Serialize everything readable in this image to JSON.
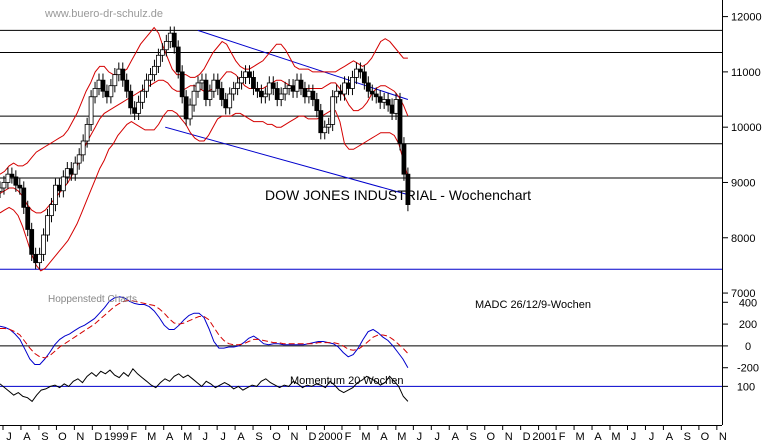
{
  "header": {
    "website": "www.buero-dr-schulz.de"
  },
  "chart_data": [
    {
      "type": "candlestick",
      "panel": "price",
      "title": "DOW JONES INDUSTRIAL - Wochenchart",
      "ylim": [
        7200,
        12300
      ],
      "yticks": [
        {
          "v": 12000,
          "label": "12000"
        },
        {
          "v": 11000,
          "label": "11000"
        },
        {
          "v": 10000,
          "label": "10000"
        },
        {
          "v": 9000,
          "label": "9000"
        },
        {
          "v": 8000,
          "label": "8000"
        },
        {
          "v": 7000,
          "label": "7000"
        }
      ],
      "horizontal_levels": [
        11750,
        11350,
        10200,
        9700,
        9080,
        7430
      ],
      "trend_channel": {
        "upper": [
          {
            "t": 48.5,
            "v": 11750
          },
          {
            "t": 100,
            "v": 10500
          }
        ],
        "lower": [
          {
            "t": 40.5,
            "v": 10000
          },
          {
            "t": 100,
            "v": 8780
          }
        ]
      },
      "series": [
        {
          "type": "bollinger-upper",
          "color": "#d40000",
          "values": [
            9150,
            9200,
            9300,
            9350,
            9300,
            9300,
            9350,
            9450,
            9550,
            9600,
            9650,
            9700,
            9750,
            9800,
            9850,
            9950,
            10100,
            10250,
            10450,
            10650,
            10800,
            11000,
            11100,
            11100,
            11000,
            10950,
            10950,
            11000,
            11050,
            11200,
            11350,
            11500,
            11600,
            11700,
            11800,
            11700,
            11450,
            11250,
            11050,
            10950,
            10950,
            10950,
            10900,
            10900,
            10950,
            11050,
            11200,
            11350,
            11450,
            11550,
            11500,
            11350,
            11200,
            11100,
            11050,
            11050,
            11100,
            11150,
            11200,
            11300,
            11400,
            11500,
            11500,
            11400,
            11250,
            11100,
            11050,
            11050,
            11050,
            11000,
            11000,
            11000,
            11000,
            11000,
            11000,
            11050,
            11100,
            11150,
            11200,
            11150,
            11100,
            11150,
            11250,
            11400,
            11550,
            11600,
            11550,
            11450,
            11350,
            11250,
            11250
          ]
        },
        {
          "type": "bollinger-middle",
          "color": "#d40000",
          "values": [
            8800,
            8850,
            8900,
            8900,
            8850,
            8750,
            8600,
            8500,
            8450,
            8450,
            8500,
            8600,
            8700,
            8800,
            8900,
            9000,
            9150,
            9300,
            9500,
            9700,
            9850,
            10000,
            10150,
            10250,
            10300,
            10350,
            10400,
            10450,
            10500,
            10550,
            10600,
            10650,
            10700,
            10750,
            10800,
            10850,
            10850,
            10800,
            10700,
            10650,
            10650,
            10700,
            10750,
            10750,
            10700,
            10650,
            10650,
            10700,
            10800,
            10900,
            11000,
            11000,
            10950,
            10850,
            10750,
            10700,
            10700,
            10700,
            10700,
            10750,
            10800,
            10850,
            10850,
            10800,
            10750,
            10700,
            10700,
            10700,
            10700,
            10700,
            10700,
            10700,
            10750,
            10800,
            10800,
            10700,
            10550,
            10400,
            10300,
            10300,
            10350,
            10450,
            10600,
            10700,
            10750,
            10750,
            10700,
            10650,
            10550,
            10400,
            10200
          ]
        },
        {
          "type": "bollinger-lower",
          "color": "#d40000",
          "values": [
            8450,
            8500,
            8550,
            8500,
            8400,
            8200,
            7950,
            7700,
            7500,
            7400,
            7450,
            7550,
            7650,
            7750,
            7850,
            7950,
            8100,
            8250,
            8450,
            8650,
            8850,
            9050,
            9250,
            9400,
            9600,
            9700,
            9850,
            9950,
            10050,
            10100,
            10050,
            10000,
            9950,
            9950,
            9950,
            10050,
            10200,
            10300,
            10300,
            10250,
            10150,
            10050,
            9900,
            9800,
            9750,
            9750,
            9850,
            10000,
            10150,
            10200,
            10200,
            10200,
            10250,
            10250,
            10200,
            10150,
            10100,
            10100,
            10100,
            10050,
            10050,
            10000,
            10000,
            10050,
            10100,
            10150,
            10200,
            10200,
            10150,
            10150,
            10150,
            10200,
            10250,
            10300,
            10300,
            10100,
            9700,
            9600,
            9600,
            9650,
            9700,
            9750,
            9800,
            9850,
            9900,
            9900,
            9900,
            9850,
            9700,
            9400,
            9100
          ]
        },
        {
          "type": "candle-close",
          "color": "#000000",
          "values": [
            8900,
            9000,
            9150,
            9100,
            8950,
            8900,
            8550,
            8150,
            7700,
            7550,
            7700,
            8050,
            8400,
            8600,
            8950,
            8850,
            9100,
            9250,
            9150,
            9350,
            9500,
            9750,
            10050,
            10550,
            10700,
            10850,
            10650,
            10550,
            10750,
            10950,
            11050,
            10850,
            10650,
            10350,
            10250,
            10450,
            10650,
            10850,
            10950,
            11100,
            11300,
            11400,
            11550,
            11700,
            11450,
            11000,
            10550,
            10150,
            10400,
            10650,
            10800,
            10850,
            10500,
            10650,
            10850,
            10700,
            10500,
            10350,
            10600,
            10700,
            10800,
            10900,
            11000,
            10900,
            10700,
            10650,
            10550,
            10600,
            10800,
            10700,
            10500,
            10600,
            10700,
            10750,
            10650,
            10850,
            10700,
            10550,
            10650,
            10500,
            10300,
            9900,
            10000,
            10050,
            10550,
            10650,
            10600,
            10800,
            10700,
            10900,
            11050,
            11000,
            10800,
            10650,
            10600,
            10550,
            10450,
            10500,
            10400,
            10250,
            10500,
            9700,
            9150,
            8600
          ]
        }
      ]
    },
    {
      "type": "line",
      "panel": "madc",
      "label": "MADC 26/12/9-Wochen",
      "source_label": "Hoppenstedt Charts",
      "ylim": [
        -340,
        540
      ],
      "yticks": [
        {
          "v": 400,
          "label": "400"
        },
        {
          "v": 200,
          "label": "200"
        },
        {
          "v": 0,
          "label": "0"
        },
        {
          "v": -200,
          "label": "-200"
        }
      ],
      "zero_line": 0,
      "series": [
        {
          "type": "madc",
          "color": "#0000cc",
          "values": [
            180,
            170,
            150,
            110,
            60,
            -30,
            -120,
            -170,
            -170,
            -120,
            -60,
            10,
            60,
            90,
            110,
            140,
            170,
            190,
            220,
            250,
            300,
            350,
            410,
            440,
            450,
            440,
            410,
            390,
            380,
            380,
            360,
            320,
            260,
            190,
            150,
            150,
            190,
            240,
            280,
            300,
            300,
            260,
            160,
            40,
            -20,
            -20,
            -10,
            -10,
            0,
            30,
            70,
            90,
            60,
            20,
            10,
            20,
            20,
            10,
            10,
            10,
            10,
            10,
            20,
            30,
            40,
            40,
            30,
            20,
            -10,
            -60,
            -100,
            -80,
            -20,
            60,
            130,
            150,
            120,
            80,
            50,
            0,
            -60,
            -120,
            -200
          ]
        },
        {
          "type": "signal",
          "color": "#d40000",
          "dashed": true,
          "values": [
            160,
            160,
            150,
            130,
            100,
            40,
            -20,
            -70,
            -100,
            -110,
            -90,
            -50,
            -10,
            20,
            50,
            80,
            110,
            140,
            170,
            200,
            240,
            280,
            320,
            360,
            390,
            410,
            420,
            410,
            400,
            390,
            380,
            370,
            340,
            300,
            250,
            210,
            200,
            210,
            230,
            250,
            270,
            270,
            240,
            170,
            100,
            50,
            20,
            10,
            10,
            20,
            40,
            60,
            60,
            50,
            40,
            30,
            30,
            20,
            20,
            20,
            20,
            20,
            20,
            20,
            30,
            30,
            30,
            30,
            20,
            0,
            -30,
            -40,
            -30,
            0,
            40,
            80,
            100,
            100,
            90,
            60,
            20,
            -20,
            -70
          ]
        }
      ]
    },
    {
      "type": "line",
      "panel": "momentum",
      "label": "Momentum 20 Wochen",
      "ylim": [
        70,
        125
      ],
      "yticks": [
        {
          "v": 100,
          "label": "100"
        }
      ],
      "reference_line": 100,
      "series": [
        {
          "type": "momentum",
          "color": "#000000",
          "values": [
            102,
            99,
            96,
            93,
            95,
            92,
            91,
            88,
            93,
            97,
            98,
            100,
            101,
            99,
            102,
            100,
            104,
            106,
            103,
            108,
            111,
            108,
            112,
            110,
            113,
            109,
            107,
            111,
            108,
            114,
            110,
            107,
            104,
            101,
            99,
            103,
            106,
            104,
            108,
            110,
            107,
            109,
            106,
            103,
            100,
            104,
            102,
            99,
            101,
            103,
            101,
            98,
            100,
            97,
            99,
            101,
            100,
            104,
            106,
            103,
            101,
            99,
            101,
            100,
            104,
            102,
            99,
            101,
            100,
            102,
            101,
            99,
            104,
            101,
            97,
            95,
            97,
            99,
            103,
            105,
            108,
            106,
            104,
            101,
            103,
            108,
            104,
            100,
            92,
            88
          ]
        }
      ]
    },
    {
      "type": "axis",
      "panel": "time",
      "ticks": [
        {
          "t": 0,
          "label": "J"
        },
        {
          "t": 4.4,
          "label": "A"
        },
        {
          "t": 8.8,
          "label": "S"
        },
        {
          "t": 13.1,
          "label": "O"
        },
        {
          "t": 17.5,
          "label": "N"
        },
        {
          "t": 21.9,
          "label": "D"
        },
        {
          "t": 26.3,
          "label": "1999"
        },
        {
          "t": 30.6,
          "label": "F"
        },
        {
          "t": 35,
          "label": "M"
        },
        {
          "t": 39.4,
          "label": "A"
        },
        {
          "t": 43.8,
          "label": "M"
        },
        {
          "t": 48.1,
          "label": "J"
        },
        {
          "t": 52.5,
          "label": "J"
        },
        {
          "t": 56.9,
          "label": "A"
        },
        {
          "t": 61.3,
          "label": "S"
        },
        {
          "t": 65.6,
          "label": "O"
        },
        {
          "t": 70,
          "label": "N"
        },
        {
          "t": 74.4,
          "label": "D"
        },
        {
          "t": 78.8,
          "label": "2000"
        },
        {
          "t": 83.1,
          "label": "F"
        },
        {
          "t": 87.5,
          "label": "M"
        },
        {
          "t": 91.9,
          "label": "A"
        },
        {
          "t": 96.3,
          "label": "M"
        },
        {
          "t": 100.6,
          "label": "J"
        },
        {
          "t": 105,
          "label": "J"
        },
        {
          "t": 109.4,
          "label": "A"
        },
        {
          "t": 113.8,
          "label": "S"
        },
        {
          "t": 118.1,
          "label": "O"
        },
        {
          "t": 122.5,
          "label": "N"
        },
        {
          "t": 126.9,
          "label": "D"
        },
        {
          "t": 131.3,
          "label": "2001"
        },
        {
          "t": 135.6,
          "label": "F"
        },
        {
          "t": 140,
          "label": "M"
        },
        {
          "t": 144.4,
          "label": "A"
        },
        {
          "t": 148.8,
          "label": "M"
        },
        {
          "t": 153.1,
          "label": "J"
        },
        {
          "t": 157.5,
          "label": "J"
        },
        {
          "t": 161.9,
          "label": "A"
        },
        {
          "t": 166.3,
          "label": "S"
        },
        {
          "t": 170.6,
          "label": "O"
        },
        {
          "t": 175,
          "label": "N"
        }
      ]
    }
  ]
}
